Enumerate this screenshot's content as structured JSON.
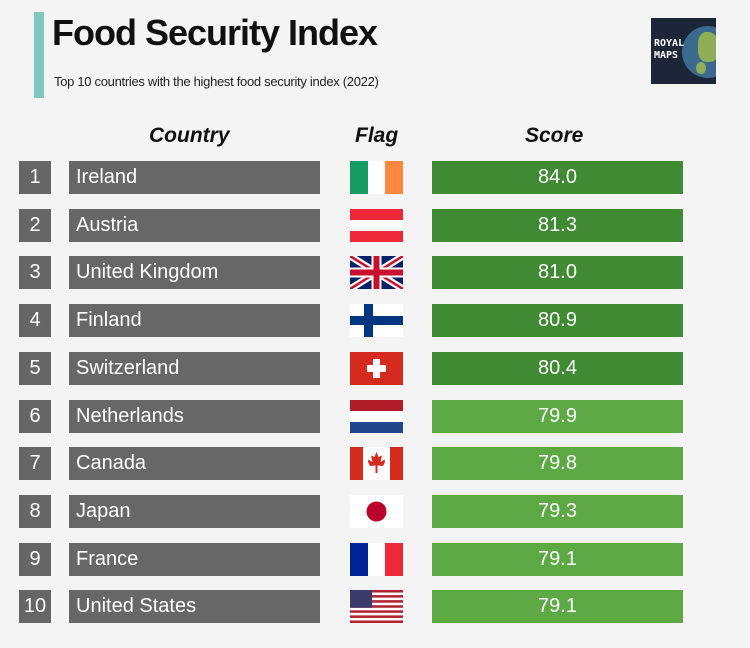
{
  "header": {
    "title": "Food Security Index",
    "subtitle": "Top 10 countries with the highest food security index (2022)",
    "logo_text": "ROYAL MAPS"
  },
  "columns": {
    "country": "Country",
    "flag": "Flag",
    "score": "Score"
  },
  "colors": {
    "dark_green": "#3f8a32",
    "light_green": "#5daa45",
    "row_gray": "#676767",
    "accent": "#7fc8c0"
  },
  "chart_data": {
    "type": "table",
    "title": "Food Security Index",
    "subtitle": "Top 10 countries with the highest food security index (2022)",
    "columns": [
      "Country",
      "Flag",
      "Score"
    ],
    "rows": [
      {
        "rank": "1",
        "country": "Ireland",
        "flag": "ireland-flag-icon",
        "score": "84.0",
        "value": 84.0,
        "tier": "dark"
      },
      {
        "rank": "2",
        "country": "Austria",
        "flag": "austria-flag-icon",
        "score": "81.3",
        "value": 81.3,
        "tier": "dark"
      },
      {
        "rank": "3",
        "country": "United Kingdom",
        "flag": "united-kingdom-flag-icon",
        "score": "81.0",
        "value": 81.0,
        "tier": "dark"
      },
      {
        "rank": "4",
        "country": "Finland",
        "flag": "finland-flag-icon",
        "score": "80.9",
        "value": 80.9,
        "tier": "dark"
      },
      {
        "rank": "5",
        "country": "Switzerland",
        "flag": "switzerland-flag-icon",
        "score": "80.4",
        "value": 80.4,
        "tier": "dark"
      },
      {
        "rank": "6",
        "country": "Netherlands",
        "flag": "netherlands-flag-icon",
        "score": "79.9",
        "value": 79.9,
        "tier": "light"
      },
      {
        "rank": "7",
        "country": "Canada",
        "flag": "canada-flag-icon",
        "score": "79.8",
        "value": 79.8,
        "tier": "light"
      },
      {
        "rank": "8",
        "country": "Japan",
        "flag": "japan-flag-icon",
        "score": "79.3",
        "value": 79.3,
        "tier": "light"
      },
      {
        "rank": "9",
        "country": "France",
        "flag": "france-flag-icon",
        "score": "79.1",
        "value": 79.1,
        "tier": "light"
      },
      {
        "rank": "10",
        "country": "United States",
        "flag": "united-states-flag-icon",
        "score": "79.1",
        "value": 79.1,
        "tier": "light"
      }
    ]
  }
}
